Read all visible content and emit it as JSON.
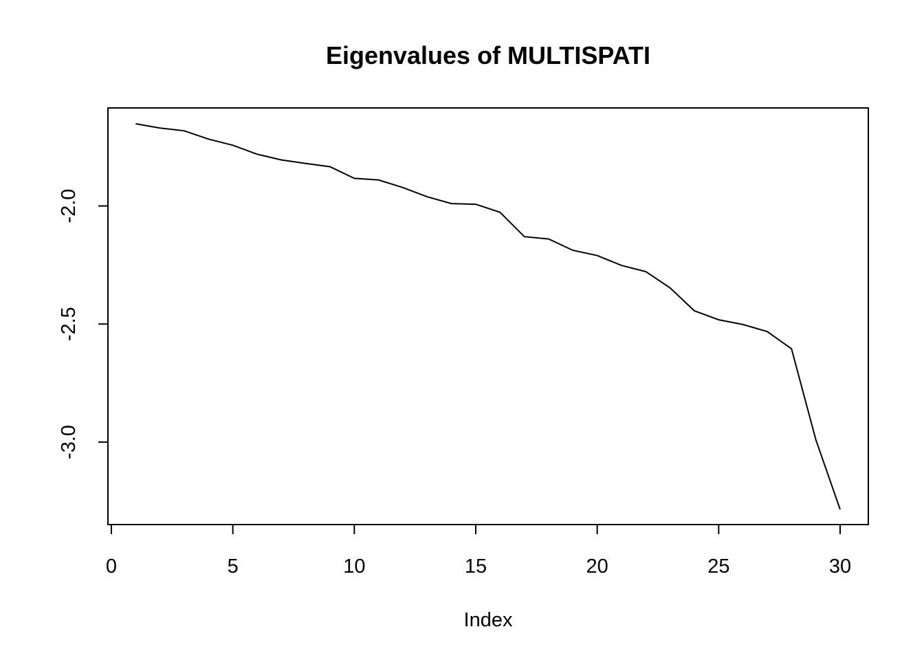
{
  "chart_data": {
    "type": "line",
    "title": "Eigenvalues of MULTISPATI",
    "xlabel": "Index",
    "ylabel": "",
    "xlim": [
      0,
      30
    ],
    "ylim": [
      -3.3,
      -1.6
    ],
    "x_ticks": [
      0,
      5,
      10,
      15,
      20,
      25,
      30
    ],
    "x_tick_labels": [
      "0",
      "5",
      "10",
      "15",
      "20",
      "25",
      "30"
    ],
    "y_ticks": [
      -3.0,
      -2.5,
      -2.0
    ],
    "y_tick_labels": [
      "-3.0",
      "-2.5",
      "-2.0"
    ],
    "grid": false,
    "legend": "none",
    "line_color": "#000000",
    "series": [
      {
        "x": [
          1,
          2,
          3,
          4,
          5,
          6,
          7,
          8,
          9,
          10,
          11,
          12,
          13,
          14,
          15,
          16,
          17,
          18,
          19,
          20,
          21,
          22,
          23,
          24,
          25,
          26,
          27,
          28,
          29,
          30
        ],
        "values": [
          -1.652,
          -1.67,
          -1.682,
          -1.717,
          -1.743,
          -1.781,
          -1.805,
          -1.82,
          -1.834,
          -1.883,
          -1.89,
          -1.922,
          -1.961,
          -1.99,
          -1.993,
          -2.027,
          -2.13,
          -2.14,
          -2.188,
          -2.21,
          -2.252,
          -2.278,
          -2.347,
          -2.444,
          -2.482,
          -2.502,
          -2.532,
          -2.605,
          -2.99,
          -3.285
        ]
      }
    ]
  }
}
